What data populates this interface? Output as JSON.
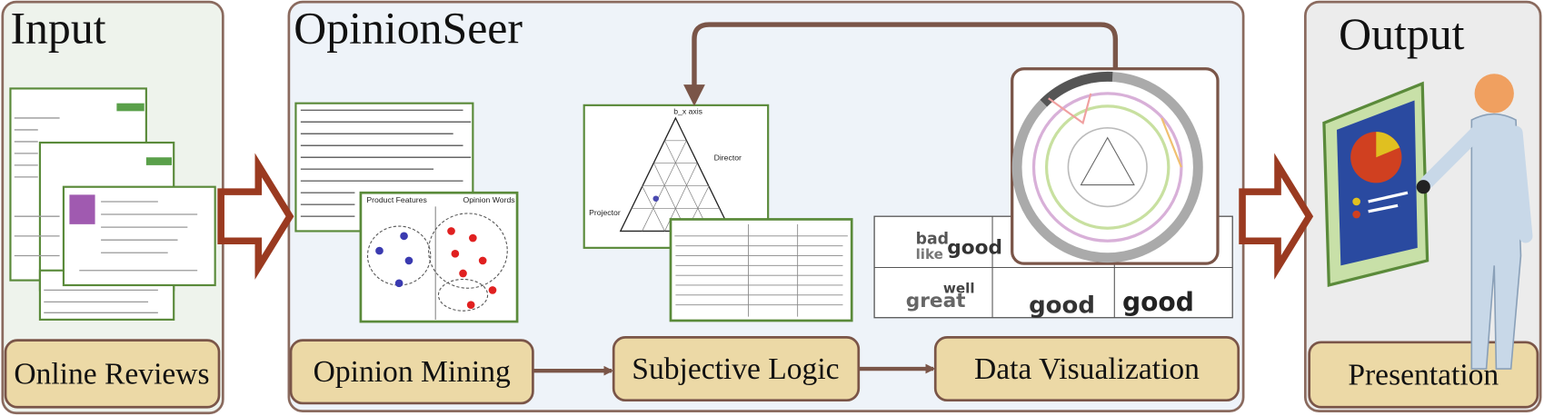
{
  "input": {
    "title": "Input",
    "step": "Online Reviews"
  },
  "opinionseer": {
    "title": "OpinionSeer",
    "steps": [
      "Opinion Mining",
      "Subjective Logic",
      "Data Visualization"
    ]
  },
  "output": {
    "title": "Output",
    "step": "Presentation"
  },
  "feature_graph": {
    "left": "Product Features",
    "right": "Opinion Words"
  },
  "triangle": {
    "axis": "b_x axis",
    "labels": [
      "Director",
      "Projector"
    ]
  },
  "word_cloud": [
    "bad",
    "good",
    "like",
    "great",
    "well",
    "good",
    "good"
  ]
}
